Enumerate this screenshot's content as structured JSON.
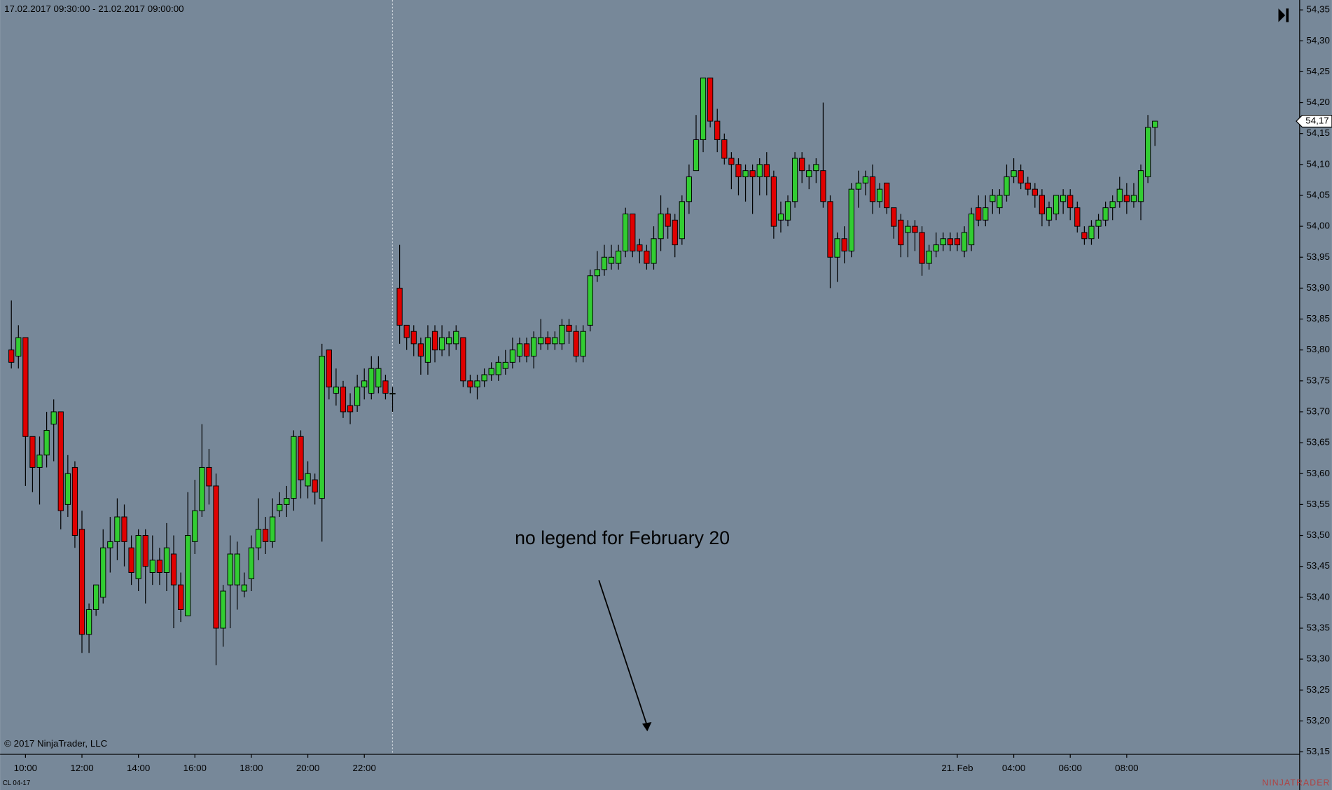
{
  "chart_data": {
    "type": "candlestick",
    "title": "17.02.2017 09:30:00 - 21.02.2017 09:00:00",
    "copyright": "© 2017 NinjaTrader, LLC",
    "instrument": "CL 04-17",
    "annotation": "no legend for February 20",
    "watermark": "NINJATRADER",
    "up_color": "#32cd32",
    "down_color": "#e00000",
    "background": "#778899",
    "open": [
      53.8,
      53.79,
      53.82,
      53.66,
      53.61,
      53.63,
      53.68,
      53.7,
      53.55,
      53.61,
      53.51,
      53.34,
      53.38,
      53.4,
      53.48,
      53.49,
      53.53,
      53.48,
      53.43,
      53.5,
      53.44,
      53.46,
      53.44,
      53.47,
      53.42,
      53.37,
      53.49,
      53.54,
      53.61,
      53.58,
      53.35,
      53.42,
      53.42,
      53.41,
      53.43,
      53.48,
      53.51,
      53.49,
      53.54,
      53.55,
      53.56,
      53.66,
      53.58,
      53.59,
      53.56,
      53.8,
      53.73,
      53.74,
      53.71,
      53.71,
      53.74,
      53.73,
      53.74,
      53.75,
      53.73,
      53.9,
      53.84,
      53.83,
      53.81,
      53.78,
      53.83,
      53.8,
      53.81,
      53.81,
      53.82,
      53.75,
      53.74,
      53.75,
      53.76,
      53.76,
      53.77,
      53.78,
      53.79,
      53.81,
      53.79,
      53.81,
      53.82,
      53.81,
      53.81,
      53.84,
      53.83,
      53.79,
      53.84,
      53.92,
      53.93,
      53.94,
      53.94,
      53.96,
      54.02,
      53.97,
      53.96,
      53.94,
      53.98,
      54.02,
      54.01,
      53.98,
      54.04,
      54.09,
      54.14,
      54.24,
      54.17,
      54.14,
      54.11,
      54.1,
      54.08,
      54.09,
      54.08,
      54.1,
      54.08,
      54.01,
      54.01,
      54.04,
      54.11,
      54.08,
      54.09,
      54.09,
      54.04,
      53.95,
      53.98,
      53.96,
      54.06,
      54.07,
      54.08,
      54.04,
      54.07,
      54.03,
      54.01,
      53.99,
      54.0,
      53.99,
      53.94,
      53.96,
      53.97,
      53.98,
      53.98,
      53.96,
      53.97,
      54.03,
      54.01,
      54.04,
      54.03,
      54.05,
      54.08,
      54.09,
      54.07,
      54.06,
      54.05,
      54.01,
      54.02,
      54.04,
      54.05,
      54.03,
      53.99,
      53.98,
      54.0,
      54.01,
      54.03,
      54.04,
      54.05,
      54.04,
      54.04,
      54.08,
      54.16
    ],
    "high": [
      53.88,
      53.84,
      53.82,
      53.66,
      53.66,
      53.7,
      53.72,
      53.7,
      53.63,
      53.62,
      53.54,
      53.39,
      53.42,
      53.51,
      53.53,
      53.56,
      53.55,
      53.5,
      53.51,
      53.51,
      53.5,
      53.48,
      53.52,
      53.5,
      53.44,
      53.57,
      53.59,
      53.68,
      53.64,
      53.6,
      53.42,
      53.5,
      53.49,
      53.44,
      53.5,
      53.56,
      53.53,
      53.56,
      53.57,
      53.58,
      53.67,
      53.67,
      53.62,
      53.6,
      53.81,
      53.8,
      53.77,
      53.75,
      53.73,
      53.76,
      53.77,
      53.79,
      53.79,
      53.76,
      53.74,
      53.97,
      53.84,
      53.84,
      53.82,
      53.84,
      53.84,
      53.84,
      53.83,
      53.84,
      53.82,
      53.76,
      53.76,
      53.77,
      53.78,
      53.79,
      53.8,
      53.82,
      53.82,
      53.82,
      53.83,
      53.85,
      53.83,
      53.83,
      53.85,
      53.85,
      53.84,
      53.84,
      53.93,
      53.96,
      53.97,
      53.97,
      53.97,
      54.03,
      54.02,
      53.98,
      53.97,
      54.0,
      54.05,
      54.03,
      54.02,
      54.05,
      54.1,
      54.18,
      54.24,
      54.24,
      54.19,
      54.15,
      54.12,
      54.11,
      54.1,
      54.1,
      54.11,
      54.12,
      54.09,
      54.04,
      54.05,
      54.12,
      54.12,
      54.1,
      54.11,
      54.2,
      54.05,
      53.99,
      54.0,
      54.07,
      54.09,
      54.09,
      54.1,
      54.07,
      54.07,
      54.03,
      54.02,
      54.01,
      54.01,
      54.0,
      53.97,
      53.99,
      53.99,
      53.99,
      53.99,
      54.0,
      54.03,
      54.05,
      54.05,
      54.06,
      54.06,
      54.1,
      54.11,
      54.1,
      54.08,
      54.07,
      54.06,
      54.04,
      54.05,
      54.06,
      54.06,
      54.04,
      54.0,
      54.01,
      54.02,
      54.04,
      54.05,
      54.08,
      54.07,
      54.07,
      54.1,
      54.18,
      54.17
    ],
    "low": [
      53.77,
      53.77,
      53.58,
      53.57,
      53.55,
      53.61,
      53.62,
      53.51,
      53.53,
      53.48,
      53.31,
      53.31,
      53.37,
      53.39,
      53.44,
      53.46,
      53.45,
      53.42,
      53.41,
      53.39,
      53.42,
      53.42,
      53.41,
      53.35,
      53.36,
      53.37,
      53.47,
      53.53,
      53.55,
      53.29,
      53.32,
      53.35,
      53.38,
      53.4,
      53.41,
      53.46,
      53.47,
      53.48,
      53.53,
      53.53,
      53.54,
      53.56,
      53.56,
      53.55,
      53.49,
      53.72,
      53.71,
      53.69,
      53.68,
      53.7,
      53.72,
      53.72,
      53.73,
      53.72,
      53.7,
      53.81,
      53.8,
      53.79,
      53.76,
      53.76,
      53.78,
      53.79,
      53.79,
      53.8,
      53.74,
      53.73,
      53.72,
      53.74,
      53.75,
      53.75,
      53.76,
      53.77,
      53.78,
      53.78,
      53.77,
      53.8,
      53.8,
      53.8,
      53.8,
      53.81,
      53.78,
      53.78,
      53.83,
      53.91,
      53.92,
      53.93,
      53.93,
      53.95,
      53.95,
      53.94,
      53.93,
      53.93,
      53.96,
      53.98,
      53.95,
      53.97,
      54.02,
      54.09,
      54.12,
      54.16,
      54.12,
      54.1,
      54.06,
      54.05,
      54.04,
      54.02,
      54.05,
      54.05,
      53.98,
      53.99,
      54.0,
      54.03,
      54.07,
      54.06,
      54.07,
      54.03,
      53.9,
      53.91,
      53.94,
      53.95,
      54.03,
      54.05,
      54.02,
      54.03,
      54.02,
      53.98,
      53.95,
      53.95,
      53.96,
      53.92,
      53.93,
      53.95,
      53.96,
      53.96,
      53.96,
      53.95,
      53.96,
      54.0,
      54.0,
      54.02,
      54.02,
      54.04,
      54.07,
      54.06,
      54.05,
      54.03,
      54.0,
      54.0,
      54.01,
      54.02,
      54.01,
      53.99,
      53.97,
      53.97,
      53.98,
      54.0,
      54.01,
      54.03,
      54.02,
      54.03,
      54.01,
      54.07,
      54.13
    ],
    "close": [
      53.78,
      53.82,
      53.66,
      53.61,
      53.63,
      53.67,
      53.7,
      53.54,
      53.6,
      53.5,
      53.34,
      53.38,
      53.42,
      53.48,
      53.49,
      53.53,
      53.49,
      53.44,
      53.5,
      53.45,
      53.46,
      53.44,
      53.48,
      53.42,
      53.38,
      53.5,
      53.54,
      53.61,
      53.58,
      53.35,
      53.41,
      53.47,
      53.47,
      53.42,
      53.48,
      53.51,
      53.49,
      53.53,
      53.55,
      53.56,
      53.66,
      53.59,
      53.6,
      53.57,
      53.79,
      53.74,
      53.74,
      53.7,
      53.7,
      53.74,
      53.75,
      53.77,
      53.77,
      53.73,
      53.73,
      53.84,
      53.82,
      53.81,
      53.79,
      53.82,
      53.8,
      53.82,
      53.82,
      53.83,
      53.75,
      53.74,
      53.75,
      53.76,
      53.77,
      53.78,
      53.78,
      53.8,
      53.81,
      53.79,
      53.82,
      53.82,
      53.81,
      53.82,
      53.84,
      53.83,
      53.79,
      53.83,
      53.92,
      53.93,
      53.95,
      53.95,
      53.96,
      54.02,
      53.96,
      53.96,
      53.94,
      53.98,
      54.02,
      54.0,
      53.97,
      54.04,
      54.08,
      54.14,
      54.24,
      54.17,
      54.14,
      54.11,
      54.1,
      54.08,
      54.09,
      54.08,
      54.1,
      54.08,
      54.0,
      54.02,
      54.04,
      54.11,
      54.09,
      54.09,
      54.1,
      54.04,
      53.95,
      53.98,
      53.96,
      54.06,
      54.07,
      54.08,
      54.04,
      54.06,
      54.03,
      54.0,
      53.97,
      54.0,
      53.99,
      53.94,
      53.96,
      53.97,
      53.98,
      53.97,
      53.97,
      53.99,
      54.02,
      54.01,
      54.03,
      54.05,
      54.05,
      54.08,
      54.09,
      54.07,
      54.06,
      54.05,
      54.02,
      54.03,
      54.05,
      54.05,
      54.03,
      54.0,
      53.98,
      54.0,
      54.01,
      54.03,
      54.04,
      54.06,
      54.04,
      54.05,
      54.09,
      54.16,
      54.17
    ],
    "last_price": {
      "value": 54.17,
      "label": "54,17"
    },
    "xlim": [
      -1.6,
      182.5
    ],
    "xticks": [
      {
        "value": 2,
        "label": "10:00"
      },
      {
        "value": 10,
        "label": "12:00"
      },
      {
        "value": 18,
        "label": "14:00"
      },
      {
        "value": 26,
        "label": "16:00"
      },
      {
        "value": 34,
        "label": "18:00"
      },
      {
        "value": 42,
        "label": "20:00"
      },
      {
        "value": 50,
        "label": "22:00"
      },
      {
        "value": 134,
        "label": "21. Feb"
      },
      {
        "value": 142,
        "label": "04:00"
      },
      {
        "value": 150,
        "label": "06:00"
      },
      {
        "value": 158,
        "label": "08:00"
      }
    ],
    "ylim": [
      53.146,
      54.366
    ],
    "yticks": [
      {
        "value": 54.35,
        "label": "54,35"
      },
      {
        "value": 54.3,
        "label": "54,30"
      },
      {
        "value": 54.25,
        "label": "54,25"
      },
      {
        "value": 54.2,
        "label": "54,20"
      },
      {
        "value": 54.15,
        "label": "54,15"
      },
      {
        "value": 54.1,
        "label": "54,10"
      },
      {
        "value": 54.05,
        "label": "54,05"
      },
      {
        "value": 54.0,
        "label": "54,00"
      },
      {
        "value": 53.95,
        "label": "53,95"
      },
      {
        "value": 53.9,
        "label": "53,90"
      },
      {
        "value": 53.85,
        "label": "53,85"
      },
      {
        "value": 53.8,
        "label": "53,80"
      },
      {
        "value": 53.75,
        "label": "53,75"
      },
      {
        "value": 53.7,
        "label": "53,70"
      },
      {
        "value": 53.65,
        "label": "53,65"
      },
      {
        "value": 53.6,
        "label": "53,60"
      },
      {
        "value": 53.55,
        "label": "53,55"
      },
      {
        "value": 53.5,
        "label": "53,50"
      },
      {
        "value": 53.45,
        "label": "53,45"
      },
      {
        "value": 53.4,
        "label": "53,40"
      },
      {
        "value": 53.35,
        "label": "53,35"
      },
      {
        "value": 53.3,
        "label": "53,30"
      },
      {
        "value": 53.25,
        "label": "53,25"
      },
      {
        "value": 53.2,
        "label": "53,20"
      },
      {
        "value": 53.15,
        "label": "53,15"
      }
    ]
  }
}
